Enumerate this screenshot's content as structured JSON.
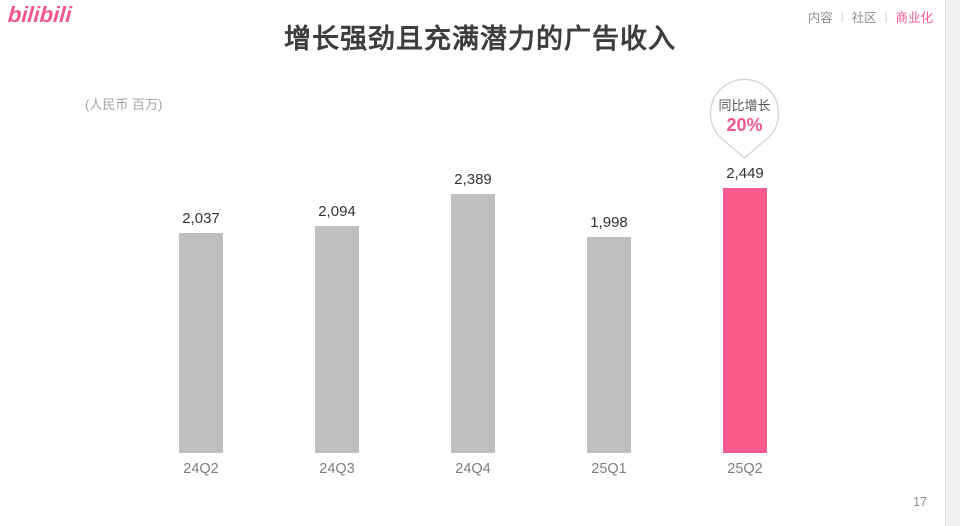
{
  "accent_color": "#F2568C",
  "logo_text": "bilibili",
  "header": {
    "title": "增长强劲且充满潜力的广告收入",
    "nav": [
      "内容",
      "社区",
      "商业化"
    ],
    "nav_separator": "|",
    "nav_active_index": 2
  },
  "units_label": "(人民币 百万)",
  "chart_data": {
    "type": "bar",
    "title": "增长强劲且充满潜力的广告收入",
    "unit": "人民币 百万 (RMB millions)",
    "categories": [
      "24Q2",
      "24Q3",
      "24Q4",
      "25Q1",
      "25Q2"
    ],
    "values": [
      2037,
      2094,
      2389,
      1998,
      2449
    ],
    "value_labels": [
      "2,037",
      "2,094",
      "2,389",
      "1,998",
      "2,449"
    ],
    "highlight_index": 4,
    "bar_color": "#BFBFBF",
    "highlight_color": "#FA5A8C",
    "ylim": [
      0,
      2700
    ],
    "grid": false,
    "legend": false,
    "annotation": {
      "label": "同比增长",
      "value": "20%",
      "applies_to": "25Q2"
    }
  },
  "footer": {
    "page_number": "17"
  }
}
